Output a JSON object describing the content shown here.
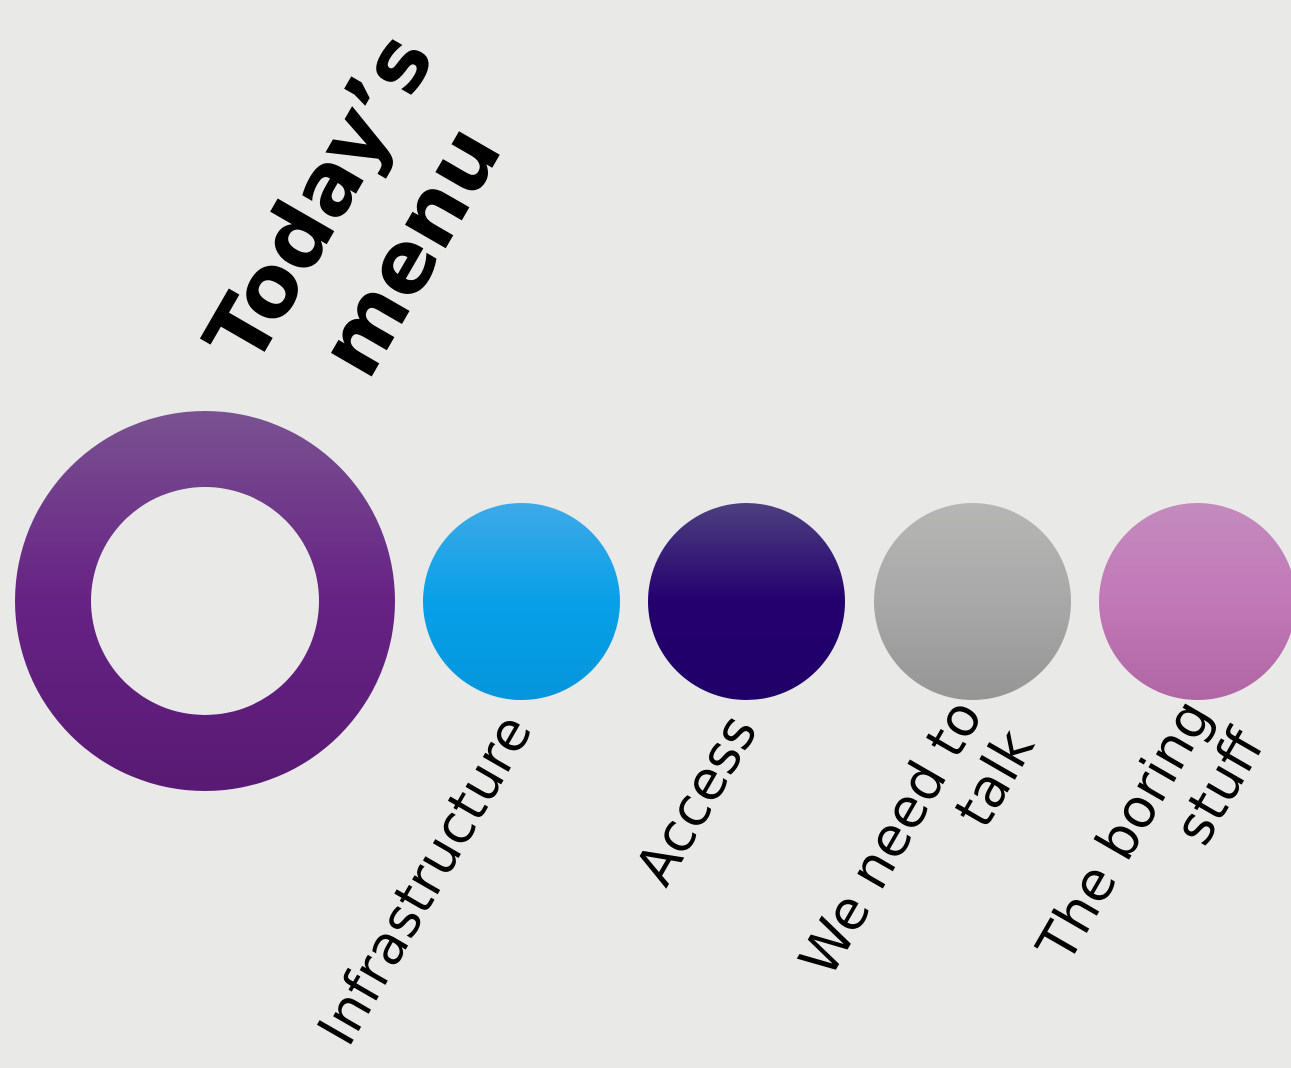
{
  "title": {
    "line1": "Today’s",
    "line2": "menu",
    "ring_color": "#662284"
  },
  "items": [
    {
      "label_line1": "Infrastructure",
      "label_line2": "",
      "color_top": "#3fa9e8",
      "color_mid": "#07a0e8",
      "color_bottom": "#0595dc"
    },
    {
      "label_line1": "Access",
      "label_line2": "",
      "color_top": "#4d4080",
      "color_mid": "#24006f",
      "color_bottom": "#200068"
    },
    {
      "label_line1": "We need to",
      "label_line2": "talk",
      "color_top": "#b6b6b5",
      "color_mid": "#a8a8a8",
      "color_bottom": "#959595"
    },
    {
      "label_line1": "The boring",
      "label_line2": "stuff",
      "color_top": "#c38bbd",
      "color_mid": "#c278b7",
      "color_bottom": "#b066a4"
    }
  ]
}
